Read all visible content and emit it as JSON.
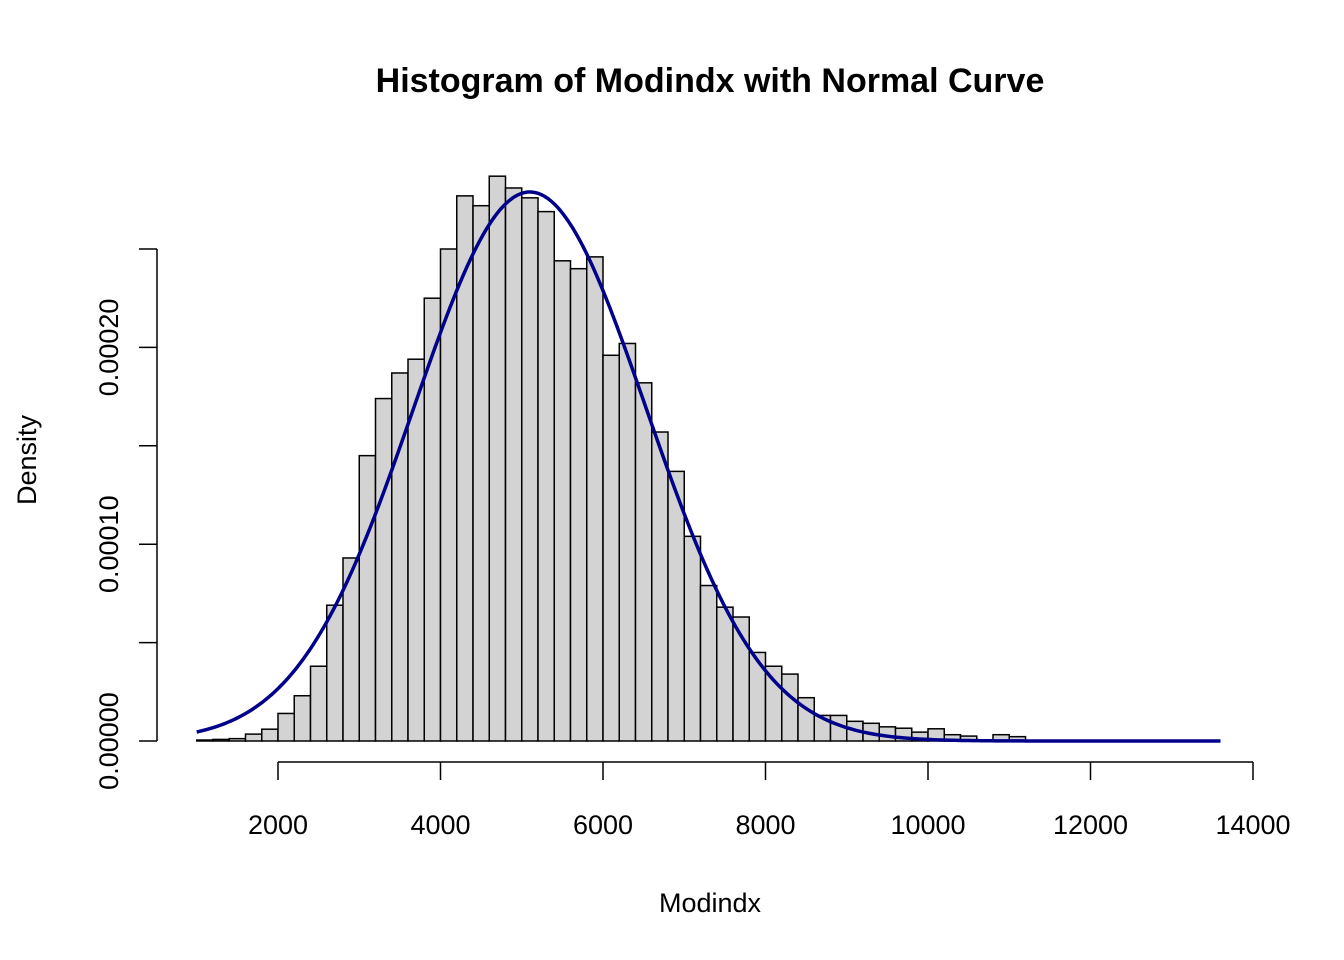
{
  "chart_data": {
    "type": "bar",
    "title": "Histogram of Modindx with Normal Curve",
    "xlabel": "Modindx",
    "ylabel": "Density",
    "xlim": [
      1000,
      14000
    ],
    "ylim": [
      0,
      0.00028
    ],
    "x_ticks": [
      2000,
      4000,
      6000,
      8000,
      10000,
      12000,
      14000
    ],
    "x_tick_labels": [
      "2000",
      "4000",
      "6000",
      "8000",
      "10000",
      "12000",
      "14000"
    ],
    "y_ticks": [
      0,
      5e-05,
      0.0001,
      0.00015,
      0.0002,
      0.00025
    ],
    "y_tick_labels": [
      "0.00000",
      "",
      "0.00010",
      "",
      "0.00020",
      ""
    ],
    "bin_width": 200,
    "bin_starts": [
      1000,
      1200,
      1400,
      1600,
      1800,
      2000,
      2200,
      2400,
      2600,
      2800,
      3000,
      3200,
      3400,
      3600,
      3800,
      4000,
      4200,
      4400,
      4600,
      4800,
      5000,
      5200,
      5400,
      5600,
      5800,
      6000,
      6200,
      6400,
      6600,
      6800,
      7000,
      7200,
      7400,
      7600,
      7800,
      8000,
      8200,
      8400,
      8600,
      8800,
      9000,
      9200,
      9400,
      9600,
      9800,
      10000,
      10200,
      10400,
      10600,
      10800,
      11000
    ],
    "densities": [
      5e-07,
      8e-07,
      1.2e-06,
      3.5e-06,
      6e-06,
      1.4e-05,
      2.3e-05,
      3.8e-05,
      6.9e-05,
      9.3e-05,
      0.000145,
      0.000174,
      0.000187,
      0.000194,
      0.000225,
      0.00025,
      0.000277,
      0.000272,
      0.000287,
      0.000281,
      0.000276,
      0.000269,
      0.000244,
      0.00024,
      0.000246,
      0.000196,
      0.000202,
      0.000182,
      0.000157,
      0.000137,
      0.000104,
      7.9e-05,
      6.8e-05,
      6.3e-05,
      4.5e-05,
      3.8e-05,
      3.4e-05,
      2.2e-05,
      1.3e-05,
      1.3e-05,
      1e-05,
      9e-06,
      7.2e-06,
      6.5e-06,
      4.5e-06,
      6.2e-06,
      3.2e-06,
      2.5e-06,
      5e-07,
      3.2e-06,
      2.2e-06
    ],
    "normal_curve": {
      "mean": 5100,
      "sd": 1430,
      "x_range": [
        1000,
        13600
      ],
      "color": "#00008b"
    },
    "bar_fill": "#d3d3d3",
    "grid": false,
    "legend": "none"
  }
}
